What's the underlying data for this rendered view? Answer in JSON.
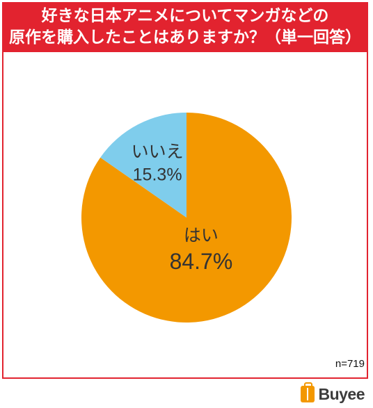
{
  "chart_data": {
    "type": "pie",
    "title_lines": [
      "好きな日本アニメについてマンガなどの",
      "原作を購入したことはありますか？（単一回答）"
    ],
    "slices": [
      {
        "label": "はい",
        "value": 84.7,
        "value_label": "84.7%",
        "color": "#f39800"
      },
      {
        "label": "いいえ",
        "value": 15.3,
        "value_label": "15.3%",
        "color": "#7fcdec"
      }
    ],
    "sample_size": "n=719",
    "start_angle_deg": 0,
    "direction": "clockwise"
  },
  "branding": {
    "logo_text": "Buyee",
    "logo_icon": "shopping-bag-icon"
  }
}
